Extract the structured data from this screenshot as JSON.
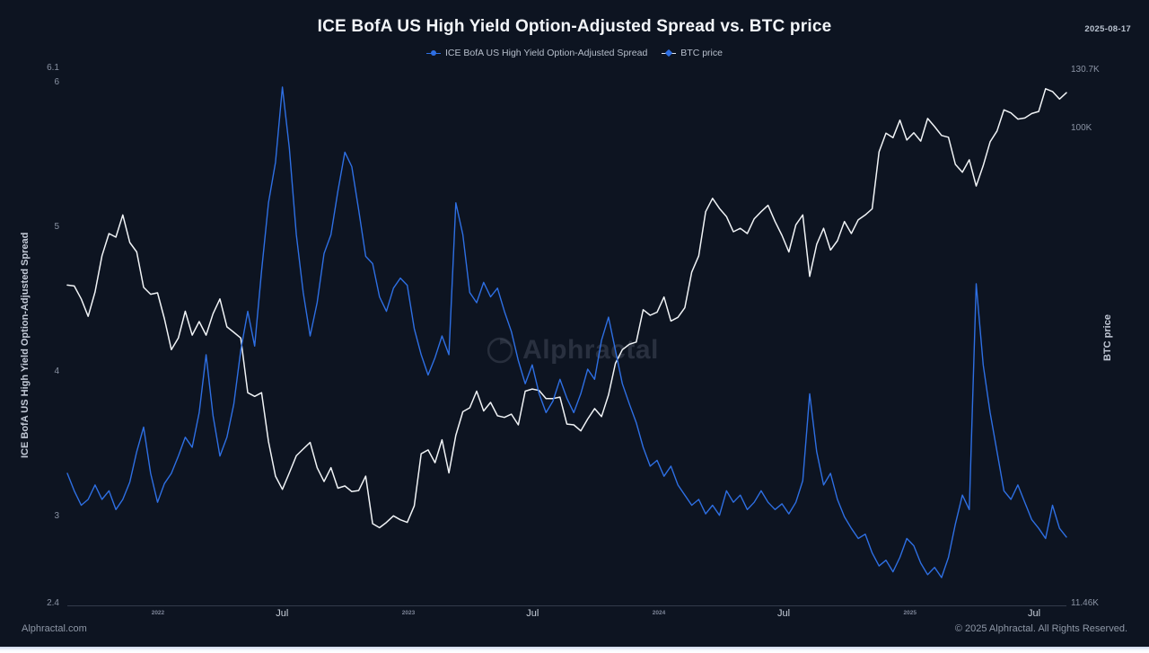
{
  "header": {
    "title": "ICE BofA US High Yield Option-Adjusted Spread vs. BTC price",
    "date": "2025-08-17"
  },
  "watermark": {
    "text": "Alphractal"
  },
  "footer": {
    "left": "Alphractal.com",
    "right": "© 2025 Alphractal. All Rights Reserved."
  },
  "chart_data": {
    "type": "line",
    "title": "ICE BofA US High Yield Option-Adjusted Spread vs. BTC price",
    "x_start": "2021-08-22",
    "x_end": "2025-08-17",
    "x_ticks": {
      "years": [
        "2022",
        "2023",
        "2024",
        "2025"
      ],
      "months": [
        "Jul",
        "Jul",
        "Jul",
        "Jul"
      ]
    },
    "y_left": {
      "label": "ICE BofA US High Yield Option-Adjusted Spread",
      "scale": "linear",
      "min": 2.4,
      "max": 6.1,
      "ticks": [
        {
          "v": 6.1,
          "label": "6.1"
        },
        {
          "v": 6,
          "label": "6"
        },
        {
          "v": 5,
          "label": "5"
        },
        {
          "v": 4,
          "label": "4"
        },
        {
          "v": 3,
          "label": "3"
        },
        {
          "v": 2.4,
          "label": "2.4"
        }
      ]
    },
    "y_right": {
      "label": "BTC price",
      "scale": "log",
      "unit": "K",
      "min": 11.46,
      "max": 130.7,
      "ticks": [
        {
          "v": 130.7,
          "label": "130.7K"
        },
        {
          "v": 100,
          "label": "100K"
        },
        {
          "v": 11.46,
          "label": "11.46K"
        }
      ]
    },
    "legend_position": "top",
    "series": [
      {
        "name": "ICE BofA US High Yield Option-Adjusted Spread",
        "axis": "left",
        "color": "#2e6fe3",
        "marker_color": "#2e6fe3",
        "values": [
          3.3,
          3.18,
          3.08,
          3.12,
          3.22,
          3.12,
          3.18,
          3.05,
          3.12,
          3.24,
          3.45,
          3.62,
          3.3,
          3.1,
          3.23,
          3.3,
          3.42,
          3.55,
          3.48,
          3.72,
          4.12,
          3.7,
          3.42,
          3.55,
          3.78,
          4.15,
          4.42,
          4.18,
          4.7,
          5.17,
          5.45,
          5.97,
          5.55,
          4.95,
          4.55,
          4.25,
          4.48,
          4.82,
          4.95,
          5.25,
          5.52,
          5.42,
          5.12,
          4.8,
          4.75,
          4.52,
          4.42,
          4.58,
          4.65,
          4.6,
          4.3,
          4.12,
          3.98,
          4.1,
          4.25,
          4.12,
          5.17,
          4.95,
          4.55,
          4.48,
          4.62,
          4.52,
          4.58,
          4.42,
          4.28,
          4.08,
          3.92,
          4.05,
          3.85,
          3.72,
          3.8,
          3.95,
          3.82,
          3.72,
          3.85,
          4.02,
          3.95,
          4.22,
          4.38,
          4.15,
          3.92,
          3.78,
          3.65,
          3.48,
          3.35,
          3.39,
          3.28,
          3.35,
          3.22,
          3.15,
          3.08,
          3.12,
          3.02,
          3.08,
          3.01,
          3.18,
          3.1,
          3.15,
          3.05,
          3.1,
          3.18,
          3.1,
          3.05,
          3.09,
          3.02,
          3.1,
          3.25,
          3.85,
          3.45,
          3.22,
          3.3,
          3.12,
          3.0,
          2.92,
          2.85,
          2.88,
          2.75,
          2.66,
          2.7,
          2.62,
          2.72,
          2.85,
          2.8,
          2.68,
          2.6,
          2.65,
          2.58,
          2.72,
          2.95,
          3.15,
          3.05,
          4.61,
          4.05,
          3.72,
          3.45,
          3.18,
          3.12,
          3.22,
          3.1,
          2.98,
          2.92,
          2.85,
          3.08,
          2.92,
          2.86
        ]
      },
      {
        "name": "BTC price",
        "axis": "right",
        "color": "#f0f3f6",
        "marker_color": "#2e6fe3",
        "values": [
          49,
          48.8,
          46,
          42.5,
          47.5,
          56,
          62,
          61,
          67.5,
          59.5,
          57,
          48.5,
          47,
          47.3,
          42,
          36.5,
          38.5,
          43.5,
          39,
          41.5,
          39,
          43,
          46,
          40.5,
          39.5,
          38.5,
          30,
          29.5,
          30,
          24,
          20.5,
          19.3,
          20.8,
          22.5,
          23.2,
          23.9,
          21.3,
          20,
          21.3,
          19.4,
          19.6,
          19.1,
          19.2,
          20.5,
          16.5,
          16.2,
          16.6,
          17.1,
          16.8,
          16.6,
          17.9,
          22.7,
          23.1,
          21.8,
          24.2,
          20.8,
          24.7,
          27.5,
          28,
          30.2,
          27.6,
          28.7,
          27,
          26.8,
          27.2,
          25.9,
          30.2,
          30.5,
          30.3,
          29.2,
          29.2,
          29.4,
          26,
          25.9,
          25.2,
          26.6,
          27.9,
          26.9,
          29.7,
          34.3,
          36.5,
          37.4,
          37.8,
          43.8,
          42.7,
          43.3,
          46.4,
          41.6,
          42.3,
          44.2,
          52,
          56,
          68.5,
          72.8,
          69.5,
          67,
          62.5,
          63.5,
          62,
          66.3,
          68.5,
          70.5,
          65.5,
          61.5,
          57,
          64.5,
          67.5,
          51,
          59,
          63.5,
          57.5,
          60,
          65.5,
          62,
          66,
          67.5,
          69.4,
          90,
          98,
          96,
          104,
          95,
          98.2,
          94.5,
          104.8,
          101,
          97,
          96.2,
          85,
          82,
          86.8,
          77,
          84.5,
          94.2,
          99,
          109,
          107.5,
          104.5,
          105,
          107.2,
          108.2,
          120,
          118.5,
          114.5,
          117.9
        ]
      }
    ]
  }
}
